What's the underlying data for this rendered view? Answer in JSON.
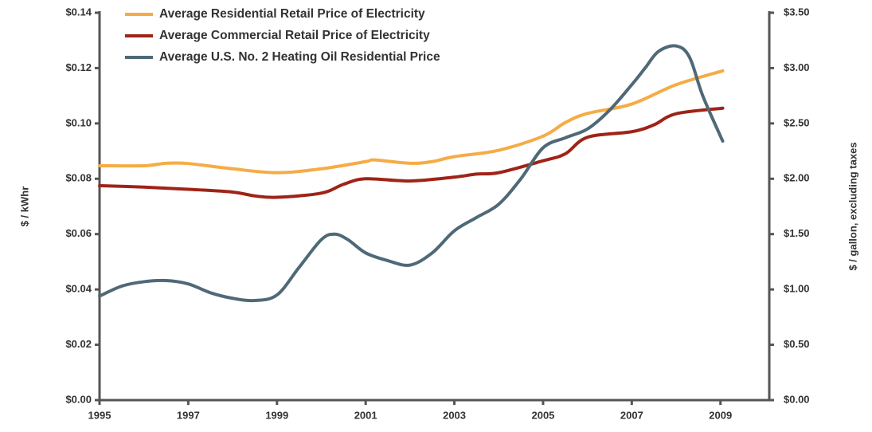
{
  "chart_data": {
    "type": "line",
    "ylabel": "$ / kWhr",
    "y2label": "$ / gallon, excluding taxes",
    "xlim": [
      1995,
      2010.1
    ],
    "xticks": [
      1995,
      1997,
      1999,
      2001,
      2003,
      2005,
      2007,
      2009
    ],
    "ylim": [
      0,
      0.14
    ],
    "yticks": [
      {
        "value": 0,
        "label": "$0.00"
      },
      {
        "value": 0.02,
        "label": "$0.02"
      },
      {
        "value": 0.04,
        "label": "$0.04"
      },
      {
        "value": 0.06,
        "label": "$0.06"
      },
      {
        "value": 0.08,
        "label": "$0.08"
      },
      {
        "value": 0.1,
        "label": "$0.10"
      },
      {
        "value": 0.12,
        "label": "$0.12"
      },
      {
        "value": 0.14,
        "label": "$0.14"
      }
    ],
    "y2lim": [
      0,
      3.5
    ],
    "y2ticks": [
      {
        "value": 0,
        "label": "$0.00"
      },
      {
        "value": 0.5,
        "label": "$0.50"
      },
      {
        "value": 1,
        "label": "$1.00"
      },
      {
        "value": 1.5,
        "label": "$1.50"
      },
      {
        "value": 2,
        "label": "$2.00"
      },
      {
        "value": 2.5,
        "label": "$2.50"
      },
      {
        "value": 3,
        "label": "$3.00"
      },
      {
        "value": 3.5,
        "label": "$3.50"
      }
    ],
    "grid": false,
    "legend": "top-left",
    "series": [
      {
        "name": "Average Residential Retail Price of Electricity",
        "color": "#f5ac45",
        "x": [
          1995,
          1996,
          1996.5,
          1997,
          1998,
          1999,
          2000,
          2001,
          2001.2,
          2002,
          2002.5,
          2003,
          2004,
          2005,
          2005.5,
          2006,
          2007,
          2008,
          2009.05
        ],
        "values": [
          0.0847,
          0.0847,
          0.0856,
          0.0855,
          0.0836,
          0.0822,
          0.0836,
          0.0862,
          0.0868,
          0.0856,
          0.0862,
          0.088,
          0.0903,
          0.0954,
          0.1003,
          0.1036,
          0.107,
          0.114,
          0.119
        ]
      },
      {
        "name": "Average Commercial Retail Price of Electricity",
        "color": "#9e2417",
        "x": [
          1995,
          1996,
          1997,
          1998,
          1998.5,
          1999,
          2000,
          2000.5,
          2001,
          2002,
          2003,
          2003.5,
          2004,
          2005,
          2005.5,
          2006,
          2007,
          2007.5,
          2008,
          2009.05
        ],
        "values": [
          0.0775,
          0.077,
          0.0762,
          0.0752,
          0.0738,
          0.0733,
          0.0748,
          0.078,
          0.08,
          0.0792,
          0.0806,
          0.0817,
          0.0822,
          0.0865,
          0.089,
          0.095,
          0.097,
          0.0995,
          0.1035,
          0.1055
        ]
      },
      {
        "name": "Average U.S. No. 2 Heating Oil Residential Price",
        "color": "#4f6977",
        "axis": "y2",
        "x": [
          1995,
          1995.5,
          1996,
          1996.5,
          1997,
          1997.5,
          1998,
          1998.5,
          1999,
          1999.5,
          2000,
          2000.3,
          2000.6,
          2001,
          2001.5,
          2002,
          2002.5,
          2003,
          2003.5,
          2004,
          2004.5,
          2005,
          2005.5,
          2006,
          2006.5,
          2007,
          2007.3,
          2007.6,
          2008,
          2008.3,
          2008.6,
          2009.05
        ],
        "values": [
          0.94,
          1.03,
          1.07,
          1.08,
          1.05,
          0.97,
          0.92,
          0.9,
          0.95,
          1.2,
          1.45,
          1.5,
          1.45,
          1.33,
          1.26,
          1.22,
          1.33,
          1.53,
          1.65,
          1.77,
          2.0,
          2.28,
          2.37,
          2.45,
          2.62,
          2.85,
          3.0,
          3.15,
          3.2,
          3.1,
          2.75,
          2.34
        ]
      }
    ]
  }
}
